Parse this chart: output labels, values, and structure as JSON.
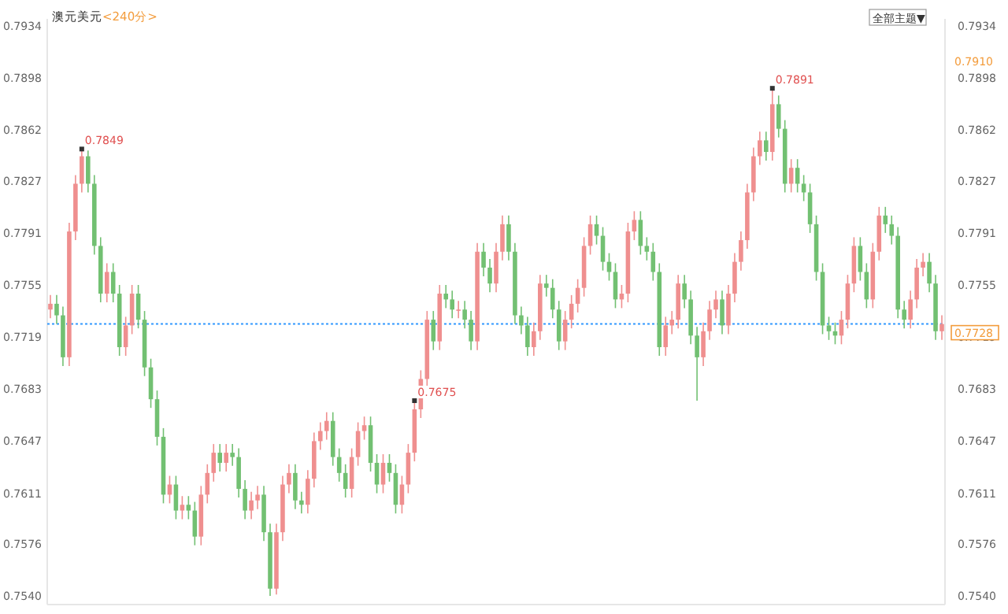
{
  "chart_data": {
    "type": "candlestick",
    "title": "澳元美元",
    "subtitle": "<240分>",
    "categories": [
      null,
      null,
      null,
      null,
      null,
      null,
      null,
      null,
      null,
      null,
      null,
      null,
      null,
      null,
      null,
      null,
      null,
      null,
      null,
      null,
      null,
      null,
      null,
      null,
      null,
      null,
      null,
      null,
      null,
      null,
      null,
      null,
      null,
      null,
      null,
      null,
      null,
      null,
      null,
      null,
      null,
      null,
      null,
      null,
      null,
      null,
      null,
      null,
      null,
      null,
      null,
      null,
      null,
      null,
      null,
      null,
      null,
      null,
      null,
      null,
      null,
      null,
      null,
      null,
      null,
      null,
      null,
      null,
      null,
      null,
      null,
      null,
      null,
      null,
      null,
      null,
      null,
      null,
      null,
      null,
      null,
      null,
      null,
      null,
      null,
      null,
      null,
      null,
      null,
      null,
      null,
      null,
      null,
      null,
      null,
      null,
      null,
      null,
      null,
      null,
      null,
      null,
      null,
      null,
      null,
      null,
      null,
      null,
      null,
      null,
      null,
      null,
      null,
      null,
      null,
      null,
      null,
      null,
      null,
      null,
      null,
      null,
      null,
      null,
      null,
      null,
      null,
      null,
      null,
      null,
      null,
      null,
      null,
      null,
      null,
      null,
      null,
      null,
      null,
      null,
      null,
      null,
      null
    ],
    "ohlc": [
      [
        0.7738,
        0.7748,
        0.7732,
        0.7742
      ],
      [
        0.7742,
        0.7748,
        0.7728,
        0.7734
      ],
      [
        0.7734,
        0.774,
        0.7699,
        0.7705
      ],
      [
        0.7705,
        0.7798,
        0.7699,
        0.7792
      ],
      [
        0.7792,
        0.7831,
        0.7786,
        0.7825
      ],
      [
        0.7825,
        0.7849,
        0.7819,
        0.7844
      ],
      [
        0.7844,
        0.7848,
        0.7819,
        0.7825
      ],
      [
        0.7825,
        0.7831,
        0.7776,
        0.7782
      ],
      [
        0.7782,
        0.7788,
        0.7743,
        0.7749
      ],
      [
        0.7749,
        0.777,
        0.7743,
        0.7764
      ],
      [
        0.7764,
        0.777,
        0.7743,
        0.7749
      ],
      [
        0.7749,
        0.7755,
        0.7706,
        0.7712
      ],
      [
        0.7712,
        0.7733,
        0.7706,
        0.7727
      ],
      [
        0.7727,
        0.7755,
        0.7721,
        0.7749
      ],
      [
        0.7749,
        0.7755,
        0.7725,
        0.7731
      ],
      [
        0.7731,
        0.7737,
        0.7692,
        0.7698
      ],
      [
        0.7698,
        0.7704,
        0.767,
        0.7676
      ],
      [
        0.7676,
        0.7682,
        0.7644,
        0.765
      ],
      [
        0.765,
        0.7656,
        0.7604,
        0.761
      ],
      [
        0.761,
        0.7623,
        0.7604,
        0.7617
      ],
      [
        0.7617,
        0.7623,
        0.7593,
        0.7599
      ],
      [
        0.7599,
        0.7609,
        0.7593,
        0.7603
      ],
      [
        0.7603,
        0.7609,
        0.7593,
        0.7599
      ],
      [
        0.7599,
        0.7605,
        0.7575,
        0.7581
      ],
      [
        0.7581,
        0.7616,
        0.7575,
        0.761
      ],
      [
        0.761,
        0.7631,
        0.7604,
        0.7625
      ],
      [
        0.7625,
        0.7645,
        0.7619,
        0.7639
      ],
      [
        0.7639,
        0.7645,
        0.7626,
        0.7632
      ],
      [
        0.7632,
        0.7645,
        0.7626,
        0.7639
      ],
      [
        0.7639,
        0.7645,
        0.763,
        0.7636
      ],
      [
        0.7636,
        0.7642,
        0.7608,
        0.7614
      ],
      [
        0.7614,
        0.762,
        0.7593,
        0.7599
      ],
      [
        0.7599,
        0.7612,
        0.7593,
        0.7606
      ],
      [
        0.7606,
        0.7616,
        0.76,
        0.761
      ],
      [
        0.761,
        0.7616,
        0.7578,
        0.7584
      ],
      [
        0.7584,
        0.759,
        0.754,
        0.7545
      ],
      [
        0.7545,
        0.759,
        0.7541,
        0.7584
      ],
      [
        0.7584,
        0.7623,
        0.7578,
        0.7617
      ],
      [
        0.7617,
        0.7631,
        0.7611,
        0.7625
      ],
      [
        0.7625,
        0.7631,
        0.76,
        0.7606
      ],
      [
        0.7606,
        0.7612,
        0.7597,
        0.7603
      ],
      [
        0.7603,
        0.7627,
        0.7597,
        0.7621
      ],
      [
        0.7621,
        0.7653,
        0.7615,
        0.7647
      ],
      [
        0.7647,
        0.766,
        0.7641,
        0.7654
      ],
      [
        0.7654,
        0.7667,
        0.7648,
        0.7661
      ],
      [
        0.7661,
        0.7667,
        0.763,
        0.7636
      ],
      [
        0.7636,
        0.7642,
        0.7619,
        0.7625
      ],
      [
        0.7625,
        0.7631,
        0.7608,
        0.7614
      ],
      [
        0.7614,
        0.7642,
        0.7608,
        0.7636
      ],
      [
        0.7636,
        0.766,
        0.763,
        0.7654
      ],
      [
        0.7654,
        0.7664,
        0.7648,
        0.7658
      ],
      [
        0.7658,
        0.7664,
        0.7626,
        0.7632
      ],
      [
        0.7632,
        0.7638,
        0.7611,
        0.7617
      ],
      [
        0.7617,
        0.7638,
        0.7611,
        0.7632
      ],
      [
        0.7632,
        0.7638,
        0.7619,
        0.7625
      ],
      [
        0.7625,
        0.7631,
        0.7597,
        0.7603
      ],
      [
        0.7603,
        0.7623,
        0.7597,
        0.7617
      ],
      [
        0.7617,
        0.7645,
        0.7611,
        0.7639
      ],
      [
        0.7639,
        0.7675,
        0.7633,
        0.7669
      ],
      [
        0.7669,
        0.7696,
        0.7663,
        0.769
      ],
      [
        0.769,
        0.7737,
        0.7684,
        0.7731
      ],
      [
        0.7731,
        0.7737,
        0.771,
        0.7716
      ],
      [
        0.7716,
        0.7755,
        0.771,
        0.7749
      ],
      [
        0.7749,
        0.7755,
        0.7739,
        0.7745
      ],
      [
        0.7745,
        0.7751,
        0.7732,
        0.7738
      ],
      [
        0.7738,
        0.7744,
        0.7732,
        0.7738
      ],
      [
        0.7738,
        0.7744,
        0.7725,
        0.7731
      ],
      [
        0.7731,
        0.7737,
        0.771,
        0.7716
      ],
      [
        0.7716,
        0.7784,
        0.771,
        0.7778
      ],
      [
        0.7778,
        0.7784,
        0.7761,
        0.7767
      ],
      [
        0.7767,
        0.7773,
        0.775,
        0.7756
      ],
      [
        0.7756,
        0.7784,
        0.775,
        0.7778
      ],
      [
        0.7778,
        0.7803,
        0.7772,
        0.7797
      ],
      [
        0.7797,
        0.7803,
        0.7772,
        0.7778
      ],
      [
        0.7778,
        0.7784,
        0.7728,
        0.7734
      ],
      [
        0.7734,
        0.774,
        0.7721,
        0.7727
      ],
      [
        0.7727,
        0.7733,
        0.7706,
        0.7712
      ],
      [
        0.7712,
        0.7729,
        0.7706,
        0.7723
      ],
      [
        0.7723,
        0.7762,
        0.7717,
        0.7756
      ],
      [
        0.7756,
        0.7762,
        0.7747,
        0.7753
      ],
      [
        0.7753,
        0.7759,
        0.7732,
        0.7738
      ],
      [
        0.7738,
        0.7744,
        0.771,
        0.7716
      ],
      [
        0.7716,
        0.7737,
        0.771,
        0.7731
      ],
      [
        0.7731,
        0.7748,
        0.7725,
        0.7742
      ],
      [
        0.7742,
        0.7759,
        0.7736,
        0.7753
      ],
      [
        0.7753,
        0.7788,
        0.7747,
        0.7782
      ],
      [
        0.7782,
        0.7803,
        0.7776,
        0.7797
      ],
      [
        0.7797,
        0.7803,
        0.7783,
        0.7789
      ],
      [
        0.7789,
        0.7795,
        0.7765,
        0.7771
      ],
      [
        0.7771,
        0.7777,
        0.7758,
        0.7764
      ],
      [
        0.7764,
        0.777,
        0.7739,
        0.7745
      ],
      [
        0.7745,
        0.7755,
        0.7739,
        0.7749
      ],
      [
        0.7749,
        0.7798,
        0.7743,
        0.7792
      ],
      [
        0.7792,
        0.7806,
        0.7786,
        0.78
      ],
      [
        0.78,
        0.7806,
        0.7776,
        0.7782
      ],
      [
        0.7782,
        0.7788,
        0.7772,
        0.7778
      ],
      [
        0.7778,
        0.7784,
        0.7758,
        0.7764
      ],
      [
        0.7764,
        0.777,
        0.7706,
        0.7712
      ],
      [
        0.7712,
        0.7733,
        0.7706,
        0.7727
      ],
      [
        0.7727,
        0.7737,
        0.7721,
        0.7731
      ],
      [
        0.7731,
        0.7762,
        0.7725,
        0.7756
      ],
      [
        0.7756,
        0.7762,
        0.7739,
        0.7745
      ],
      [
        0.7745,
        0.7751,
        0.7714,
        0.772
      ],
      [
        0.772,
        0.7726,
        0.7675,
        0.7705
      ],
      [
        0.7705,
        0.7729,
        0.7699,
        0.7723
      ],
      [
        0.7723,
        0.7744,
        0.7717,
        0.7738
      ],
      [
        0.7738,
        0.7751,
        0.7732,
        0.7745
      ],
      [
        0.7745,
        0.7751,
        0.7721,
        0.7727
      ],
      [
        0.7727,
        0.7755,
        0.7721,
        0.7749
      ],
      [
        0.7749,
        0.7777,
        0.7743,
        0.7771
      ],
      [
        0.7771,
        0.7792,
        0.7765,
        0.7786
      ],
      [
        0.7786,
        0.7825,
        0.778,
        0.7819
      ],
      [
        0.7819,
        0.785,
        0.7813,
        0.7844
      ],
      [
        0.7844,
        0.7861,
        0.7838,
        0.7855
      ],
      [
        0.7855,
        0.7861,
        0.7841,
        0.7847
      ],
      [
        0.7847,
        0.7891,
        0.7841,
        0.788
      ],
      [
        0.788,
        0.7886,
        0.7857,
        0.7863
      ],
      [
        0.7863,
        0.7869,
        0.7819,
        0.7825
      ],
      [
        0.7825,
        0.7842,
        0.7819,
        0.7836
      ],
      [
        0.7836,
        0.7842,
        0.7819,
        0.7825
      ],
      [
        0.7825,
        0.7831,
        0.7813,
        0.7819
      ],
      [
        0.7819,
        0.7825,
        0.7791,
        0.7797
      ],
      [
        0.7797,
        0.7803,
        0.7758,
        0.7764
      ],
      [
        0.7764,
        0.777,
        0.7721,
        0.7727
      ],
      [
        0.7727,
        0.7733,
        0.7717,
        0.7723
      ],
      [
        0.7723,
        0.7729,
        0.7714,
        0.772
      ],
      [
        0.772,
        0.7737,
        0.7714,
        0.7731
      ],
      [
        0.7731,
        0.7762,
        0.7725,
        0.7756
      ],
      [
        0.7756,
        0.7788,
        0.775,
        0.7782
      ],
      [
        0.7782,
        0.7788,
        0.7758,
        0.7764
      ],
      [
        0.7764,
        0.777,
        0.7739,
        0.7745
      ],
      [
        0.7745,
        0.7784,
        0.7739,
        0.7778
      ],
      [
        0.7778,
        0.7809,
        0.7772,
        0.7803
      ],
      [
        0.7803,
        0.7809,
        0.7791,
        0.7797
      ],
      [
        0.7797,
        0.7803,
        0.7783,
        0.7789
      ],
      [
        0.7789,
        0.7795,
        0.7732,
        0.7738
      ],
      [
        0.7738,
        0.7744,
        0.7725,
        0.7731
      ],
      [
        0.7731,
        0.7751,
        0.7725,
        0.7745
      ],
      [
        0.7745,
        0.7773,
        0.7739,
        0.7767
      ],
      [
        0.7767,
        0.7777,
        0.7761,
        0.7771
      ],
      [
        0.7771,
        0.7777,
        0.775,
        0.7756
      ],
      [
        0.7756,
        0.7762,
        0.7717,
        0.7723
      ],
      [
        0.7723,
        0.7734,
        0.7717,
        0.7728
      ]
    ],
    "ylim": [
      0.7534,
      0.7939
    ],
    "yticks": [
      {
        "value": 0.754,
        "label": "0.7540"
      },
      0.7576,
      0.7611,
      0.7647,
      0.7683,
      0.7719,
      0.7755,
      0.7791,
      0.7827,
      0.7862,
      0.7898,
      0.7934
    ],
    "y2lim": [
      0.7534,
      0.7939
    ],
    "y2ticks": [
      {
        "value": 0.754,
        "label": "0.7540"
      },
      0.7576,
      0.7611,
      0.7647,
      0.7683,
      0.7719,
      0.7755,
      0.7791,
      0.7827,
      0.7862,
      0.7898,
      0.7934
    ],
    "ref_lines": [
      {
        "axis": "y",
        "value": 0.7728,
        "label": "0.7728",
        "color": "#3399ff",
        "line_style": "dotted"
      }
    ],
    "annotations": [
      "0.7849",
      "0.7891",
      "0.7675",
      "0.7910",
      "全部主题▼"
    ],
    "grid": false
  }
}
